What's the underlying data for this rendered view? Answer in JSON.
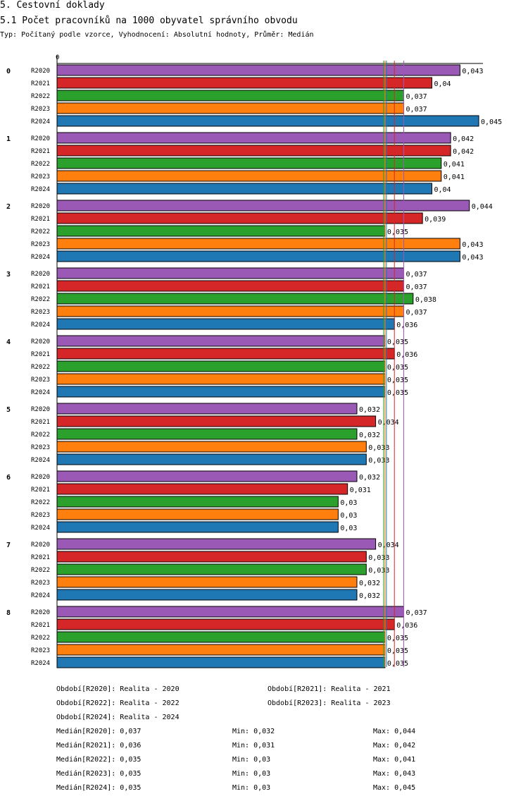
{
  "header": {
    "title": "5. Cestovní doklady",
    "subtitle": "5.1 Počet pracovníků na 1000 obyvatel správního obvodu",
    "type_line": "Typ: Počítaný podle vzorce, Vyhodnocení: Absolutní hodnoty, Průměr: Medián"
  },
  "chart_data": {
    "type": "bar",
    "orientation": "horizontal",
    "x_zero_label": "0",
    "xlim": [
      0,
      0.0462
    ],
    "categories": [
      "0",
      "1",
      "2",
      "3",
      "4",
      "5",
      "6",
      "7",
      "8"
    ],
    "series": [
      {
        "name": "R2020",
        "color": "#9b59b6",
        "values": [
          0.043,
          0.042,
          0.044,
          0.037,
          0.035,
          0.032,
          0.032,
          0.034,
          0.037
        ],
        "labels": [
          "0,043",
          "0,042",
          "0,044",
          "0,037",
          "0,035",
          "0,032",
          "0,032",
          "0,034",
          "0,037"
        ]
      },
      {
        "name": "R2021",
        "color": "#d62728",
        "values": [
          0.04,
          0.042,
          0.039,
          0.037,
          0.036,
          0.034,
          0.031,
          0.033,
          0.036
        ],
        "labels": [
          "0,04",
          "0,042",
          "0,039",
          "0,037",
          "0,036",
          "0,034",
          "0,031",
          "0,033",
          "0,036"
        ]
      },
      {
        "name": "R2022",
        "color": "#2ca02c",
        "values": [
          0.037,
          0.041,
          0.035,
          0.038,
          0.035,
          0.032,
          0.03,
          0.033,
          0.035
        ],
        "labels": [
          "0,037",
          "0,041",
          "0,035",
          "0,038",
          "0,035",
          "0,032",
          "0,03",
          "0,033",
          "0,035"
        ]
      },
      {
        "name": "R2023",
        "color": "#ff7f0e",
        "values": [
          0.037,
          0.041,
          0.043,
          0.037,
          0.035,
          0.033,
          0.03,
          0.032,
          0.035
        ],
        "labels": [
          "0,037",
          "0,041",
          "0,043",
          "0,037",
          "0,035",
          "0,033",
          "0,03",
          "0,032",
          "0,035"
        ]
      },
      {
        "name": "R2024",
        "color": "#1f77b4",
        "values": [
          0.045,
          0.04,
          0.043,
          0.036,
          0.035,
          0.033,
          0.03,
          0.032,
          0.035
        ],
        "labels": [
          "0,045",
          "0,04",
          "0,043",
          "0,036",
          "0,035",
          "0,033",
          "0,03",
          "0,032",
          "0,035"
        ]
      }
    ],
    "median_lines": [
      {
        "series": "R2020",
        "value": 0.037,
        "color": "#9b59b6"
      },
      {
        "series": "R2021",
        "value": 0.036,
        "color": "#d62728"
      },
      {
        "series": "R2022",
        "value": 0.035,
        "color": "#2ca02c"
      },
      {
        "series": "R2023",
        "value": 0.035,
        "color": "#ff7f0e"
      },
      {
        "series": "R2024",
        "value": 0.035,
        "color": "#1f77b4"
      }
    ]
  },
  "legend": {
    "periods": [
      "Období[R2020]: Realita - 2020",
      "Období[R2021]: Realita - 2021",
      "Období[R2022]: Realita - 2022",
      "Období[R2023]: Realita - 2023",
      "Období[R2024]: Realita - 2024"
    ],
    "stats": [
      {
        "median": "Medián[R2020]: 0,037",
        "min": "Min: 0,032",
        "max": "Max: 0,044"
      },
      {
        "median": "Medián[R2021]: 0,036",
        "min": "Min: 0,031",
        "max": "Max: 0,042"
      },
      {
        "median": "Medián[R2022]: 0,035",
        "min": "Min: 0,03",
        "max": "Max: 0,041"
      },
      {
        "median": "Medián[R2023]: 0,035",
        "min": "Min: 0,03",
        "max": "Max: 0,043"
      },
      {
        "median": "Medián[R2024]: 0,035",
        "min": "Min: 0,03",
        "max": "Max: 0,045"
      }
    ]
  }
}
